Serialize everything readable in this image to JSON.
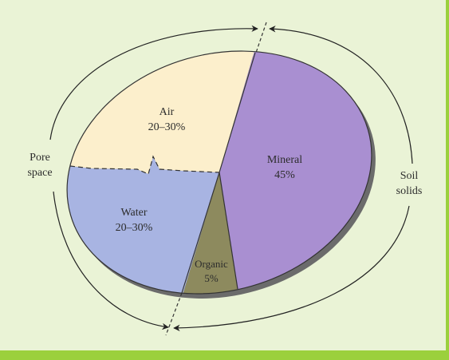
{
  "chart_data": {
    "type": "pie",
    "slices": [
      {
        "label": "Mineral",
        "value_label": "45%",
        "value": 45,
        "color": "#a98fd1"
      },
      {
        "label": "Organic",
        "value_label": "5%",
        "value": 5,
        "color": "#8d8a5e"
      },
      {
        "label": "Water",
        "value_label": "20–30%",
        "value": 25,
        "color": "#a8b4e2"
      },
      {
        "label": "Air",
        "value_label": "20–30%",
        "value": 25,
        "color": "#fcefcc"
      }
    ],
    "groups": [
      {
        "label_lines": [
          "Pore",
          "space"
        ],
        "members": [
          "Air",
          "Water"
        ]
      },
      {
        "label_lines": [
          "Soil",
          "solids"
        ],
        "members": [
          "Mineral",
          "Organic"
        ]
      }
    ]
  },
  "colors": {
    "background": "#eaf3d6",
    "border": "#9bd03c",
    "shadow": "#6b6b6b"
  }
}
